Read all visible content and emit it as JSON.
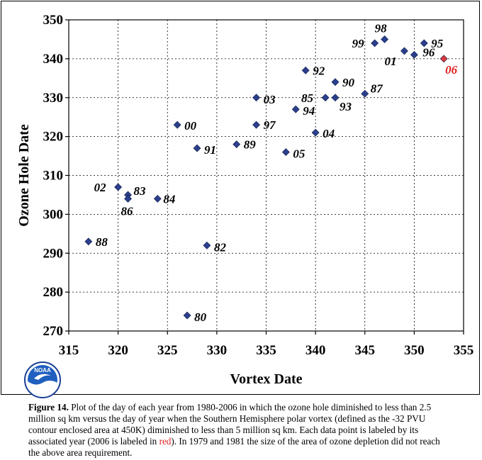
{
  "chart_data": {
    "type": "scatter",
    "title": "",
    "xlabel": "Vortex Date",
    "ylabel": "Ozone Hole Date",
    "xlim": [
      315,
      355
    ],
    "ylim": [
      270,
      350
    ],
    "x_ticks": [
      315,
      320,
      325,
      330,
      335,
      340,
      345,
      350,
      355
    ],
    "y_ticks": [
      270,
      280,
      290,
      300,
      310,
      320,
      330,
      340,
      350
    ],
    "grid": true,
    "colors": {
      "default": "#2B3F8C",
      "highlight": "#D93A3A",
      "label_default": "#000000",
      "label_highlight": "#E02020"
    },
    "points": [
      {
        "label": "80",
        "x": 327,
        "y": 274
      },
      {
        "label": "82",
        "x": 329,
        "y": 292
      },
      {
        "label": "83",
        "x": 321,
        "y": 305
      },
      {
        "label": "84",
        "x": 324,
        "y": 304
      },
      {
        "label": "85",
        "x": 341,
        "y": 330
      },
      {
        "label": "86",
        "x": 321,
        "y": 304
      },
      {
        "label": "87",
        "x": 345,
        "y": 331
      },
      {
        "label": "88",
        "x": 317,
        "y": 293
      },
      {
        "label": "89",
        "x": 332,
        "y": 318
      },
      {
        "label": "90",
        "x": 342,
        "y": 334
      },
      {
        "label": "91",
        "x": 328,
        "y": 317
      },
      {
        "label": "92",
        "x": 339,
        "y": 337
      },
      {
        "label": "93",
        "x": 342,
        "y": 330
      },
      {
        "label": "94",
        "x": 338,
        "y": 327
      },
      {
        "label": "95",
        "x": 351,
        "y": 344
      },
      {
        "label": "96",
        "x": 350,
        "y": 341
      },
      {
        "label": "97",
        "x": 334,
        "y": 323
      },
      {
        "label": "98",
        "x": 347,
        "y": 345
      },
      {
        "label": "99",
        "x": 346,
        "y": 344
      },
      {
        "label": "00",
        "x": 326,
        "y": 323
      },
      {
        "label": "01",
        "x": 349,
        "y": 342
      },
      {
        "label": "02",
        "x": 320,
        "y": 307
      },
      {
        "label": "03",
        "x": 334,
        "y": 330
      },
      {
        "label": "04",
        "x": 340,
        "y": 321
      },
      {
        "label": "05",
        "x": 337,
        "y": 316
      },
      {
        "label": "06",
        "x": 353,
        "y": 340,
        "highlight": true
      }
    ]
  },
  "logo": {
    "text": "NOAA",
    "icon": "noaa-logo-icon"
  },
  "caption": {
    "figure_ref": "Figure 14.",
    "text_before": " Plot of the day of each year from 1980-2006 in which the ozone hole diminished to less than 2.5 million sq km versus the day of year when the Southern Hemisphere polar vortex (defined as the -32 PVU contour enclosed area at 450K) diminished to less than 5 million sq km. Each data point is labeled by its associated year (2006 is labeled in ",
    "highlight_word": "red",
    "text_after": ").  In 1979 and 1981 the size of the area of ozone depletion did not reach the above area requirement."
  }
}
